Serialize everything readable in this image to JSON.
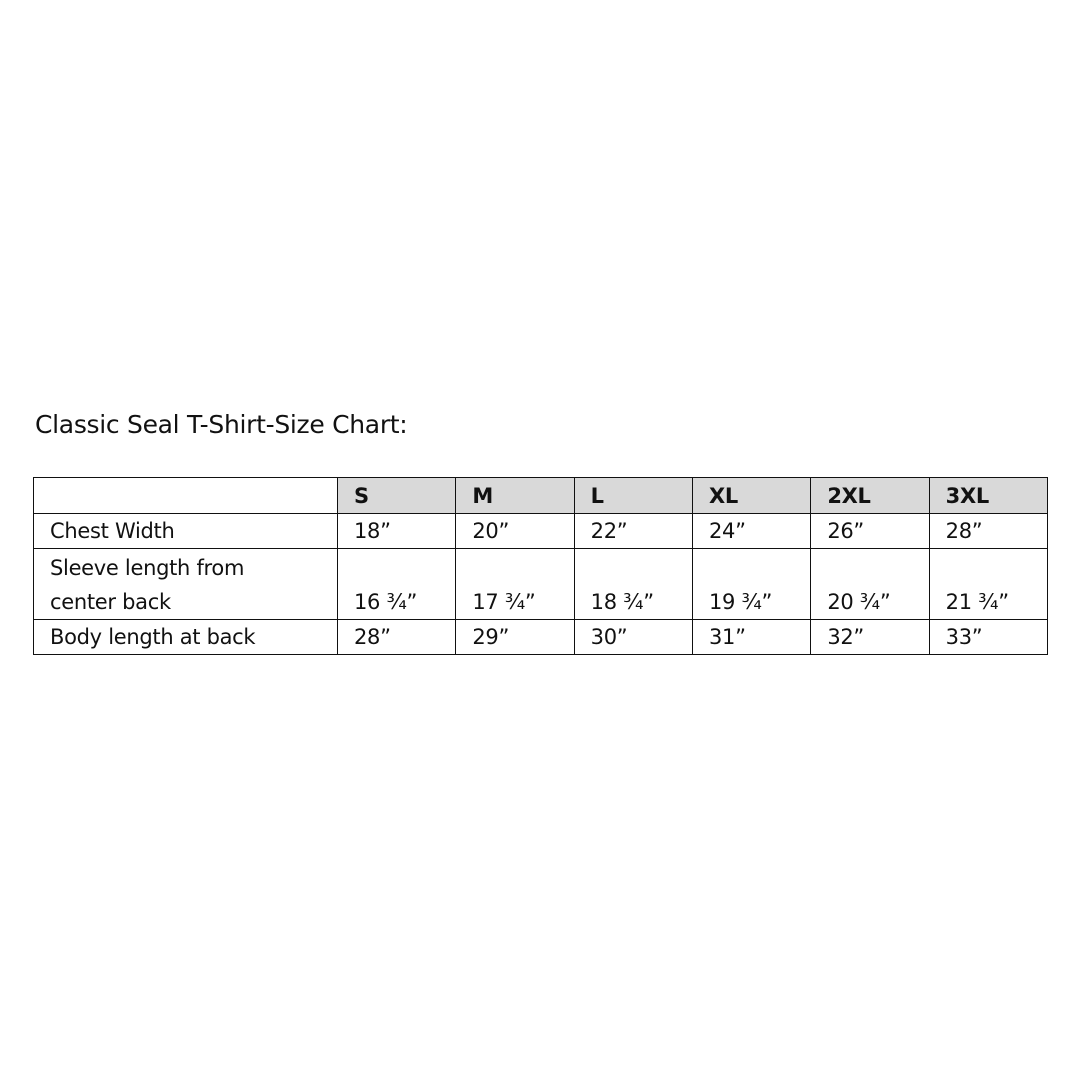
{
  "title": "Classic Seal T-Shirt-Size Chart:",
  "table": {
    "header_fill": "#d9d9d9",
    "sizes": [
      "S",
      "M",
      "L",
      "XL",
      "2XL",
      "3XL"
    ],
    "rows": [
      {
        "label": "Chest Width",
        "values": [
          "18”",
          "20”",
          "22”",
          "24”",
          "26”",
          "28”"
        ]
      },
      {
        "label_line1": "Sleeve length from",
        "label_line2": "center back",
        "values": [
          "16 ¾”",
          "17 ¾”",
          "18 ¾”",
          "19 ¾”",
          "20 ¾”",
          "21 ¾”"
        ]
      },
      {
        "label": "Body length at back",
        "values": [
          "28”",
          "29”",
          "30”",
          "31”",
          "32”",
          "33”"
        ]
      }
    ]
  }
}
